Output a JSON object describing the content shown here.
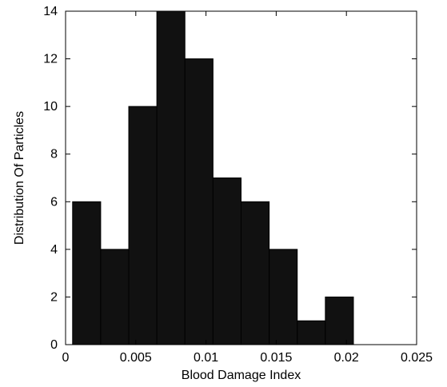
{
  "chart_data": {
    "type": "bar",
    "title": "",
    "xlabel": "Blood Damage Index",
    "ylabel": "Distribution Of Particles",
    "xlim": [
      0,
      0.025
    ],
    "ylim": [
      0,
      14
    ],
    "x_ticks": [
      0,
      0.005,
      0.01,
      0.015,
      0.02,
      0.025
    ],
    "x_tick_labels": [
      "0",
      "0.005",
      "0.01",
      "0.015",
      "0.02",
      "0.025"
    ],
    "y_ticks": [
      0,
      2,
      4,
      6,
      8,
      10,
      12,
      14
    ],
    "y_tick_labels": [
      "0",
      "2",
      "4",
      "6",
      "8",
      "10",
      "12",
      "14"
    ],
    "bins": [
      {
        "x0": 0.0005,
        "x1": 0.0025,
        "count": 6
      },
      {
        "x0": 0.0025,
        "x1": 0.0045,
        "count": 4
      },
      {
        "x0": 0.0045,
        "x1": 0.0065,
        "count": 10
      },
      {
        "x0": 0.0065,
        "x1": 0.0085,
        "count": 14
      },
      {
        "x0": 0.0085,
        "x1": 0.0105,
        "count": 12
      },
      {
        "x0": 0.0105,
        "x1": 0.0125,
        "count": 7
      },
      {
        "x0": 0.0125,
        "x1": 0.0145,
        "count": 6
      },
      {
        "x0": 0.0145,
        "x1": 0.0165,
        "count": 4
      },
      {
        "x0": 0.0165,
        "x1": 0.0185,
        "count": 1
      },
      {
        "x0": 0.0185,
        "x1": 0.0205,
        "count": 2
      }
    ],
    "bar_color": "#111111",
    "grid": false,
    "legend": "none"
  }
}
